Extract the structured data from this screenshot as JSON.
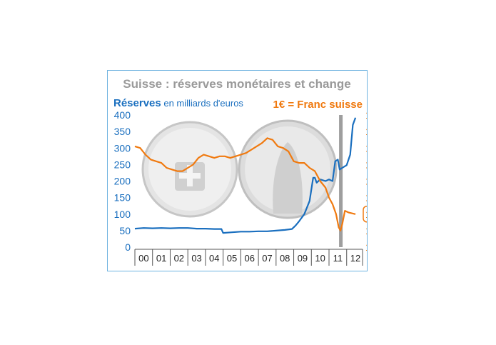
{
  "chart_data": {
    "type": "line",
    "title": "Suisse : réserves monétaires et change",
    "ylabel_left": {
      "bold": "Réserves",
      "rest": " en milliards d'euros"
    },
    "ylabel_right": "1€ = Franc suisse",
    "ylim_left": [
      0,
      400
    ],
    "ylim_right": [
      1.0,
      1.8
    ],
    "yticks_left": [
      "0",
      "50",
      "100",
      "150",
      "200",
      "250",
      "300",
      "350",
      "400"
    ],
    "yticks_right": [
      "1.0",
      "1.1",
      "1.2",
      "1.3",
      "1.4",
      "1.5",
      "1.6",
      "1.7",
      "1.8"
    ],
    "xticks": [
      "00",
      "01",
      "02",
      "03",
      "04",
      "05",
      "06",
      "07",
      "08",
      "09",
      "10",
      "11",
      "12"
    ],
    "xlim": [
      2000,
      2012.9
    ],
    "highlight_value": "1.2",
    "vertical_marker_x": 2011.67,
    "series": [
      {
        "name": "Réserves",
        "axis": "left",
        "color": "#1a6fbf",
        "x": [
          2000,
          2000.5,
          2001,
          2001.5,
          2002,
          2002.5,
          2003,
          2003.5,
          2004,
          2004.5,
          2004.9,
          2005.0,
          2005.5,
          2006,
          2006.5,
          2007,
          2007.5,
          2008,
          2008.5,
          2008.9,
          2009.1,
          2009.3,
          2009.6,
          2009.9,
          2010.1,
          2010.2,
          2010.3,
          2010.5,
          2010.8,
          2011.0,
          2011.2,
          2011.35,
          2011.5,
          2011.6,
          2011.75,
          2011.9,
          2012.0,
          2012.2,
          2012.35,
          2012.5
        ],
        "values": [
          56,
          58,
          57,
          58,
          57,
          58,
          58,
          56,
          56,
          55,
          55,
          43,
          45,
          47,
          47,
          48,
          48,
          50,
          52,
          55,
          65,
          78,
          100,
          140,
          210,
          210,
          195,
          205,
          200,
          205,
          200,
          260,
          265,
          235,
          240,
          245,
          248,
          280,
          370,
          392
        ]
      },
      {
        "name": "1€ = Franc suisse",
        "axis": "right",
        "color": "#f07a10",
        "x": [
          2000,
          2000.3,
          2000.6,
          2000.9,
          2001.2,
          2001.5,
          2001.8,
          2002.1,
          2002.4,
          2002.7,
          2003.0,
          2003.3,
          2003.6,
          2003.9,
          2004.2,
          2004.5,
          2004.8,
          2005.1,
          2005.4,
          2005.7,
          2006.0,
          2006.3,
          2006.6,
          2006.9,
          2007.2,
          2007.5,
          2007.8,
          2008.1,
          2008.4,
          2008.7,
          2009.0,
          2009.3,
          2009.6,
          2009.9,
          2010.2,
          2010.5,
          2010.8,
          2011.0,
          2011.2,
          2011.4,
          2011.55,
          2011.65,
          2011.75,
          2011.9,
          2012.1,
          2012.5
        ],
        "values": [
          1.61,
          1.6,
          1.56,
          1.53,
          1.52,
          1.51,
          1.48,
          1.47,
          1.46,
          1.46,
          1.48,
          1.5,
          1.54,
          1.56,
          1.55,
          1.54,
          1.55,
          1.55,
          1.54,
          1.55,
          1.56,
          1.57,
          1.59,
          1.61,
          1.63,
          1.66,
          1.65,
          1.61,
          1.6,
          1.58,
          1.52,
          1.51,
          1.51,
          1.48,
          1.46,
          1.4,
          1.36,
          1.3,
          1.26,
          1.2,
          1.12,
          1.1,
          1.14,
          1.22,
          1.21,
          1.2
        ]
      }
    ]
  }
}
